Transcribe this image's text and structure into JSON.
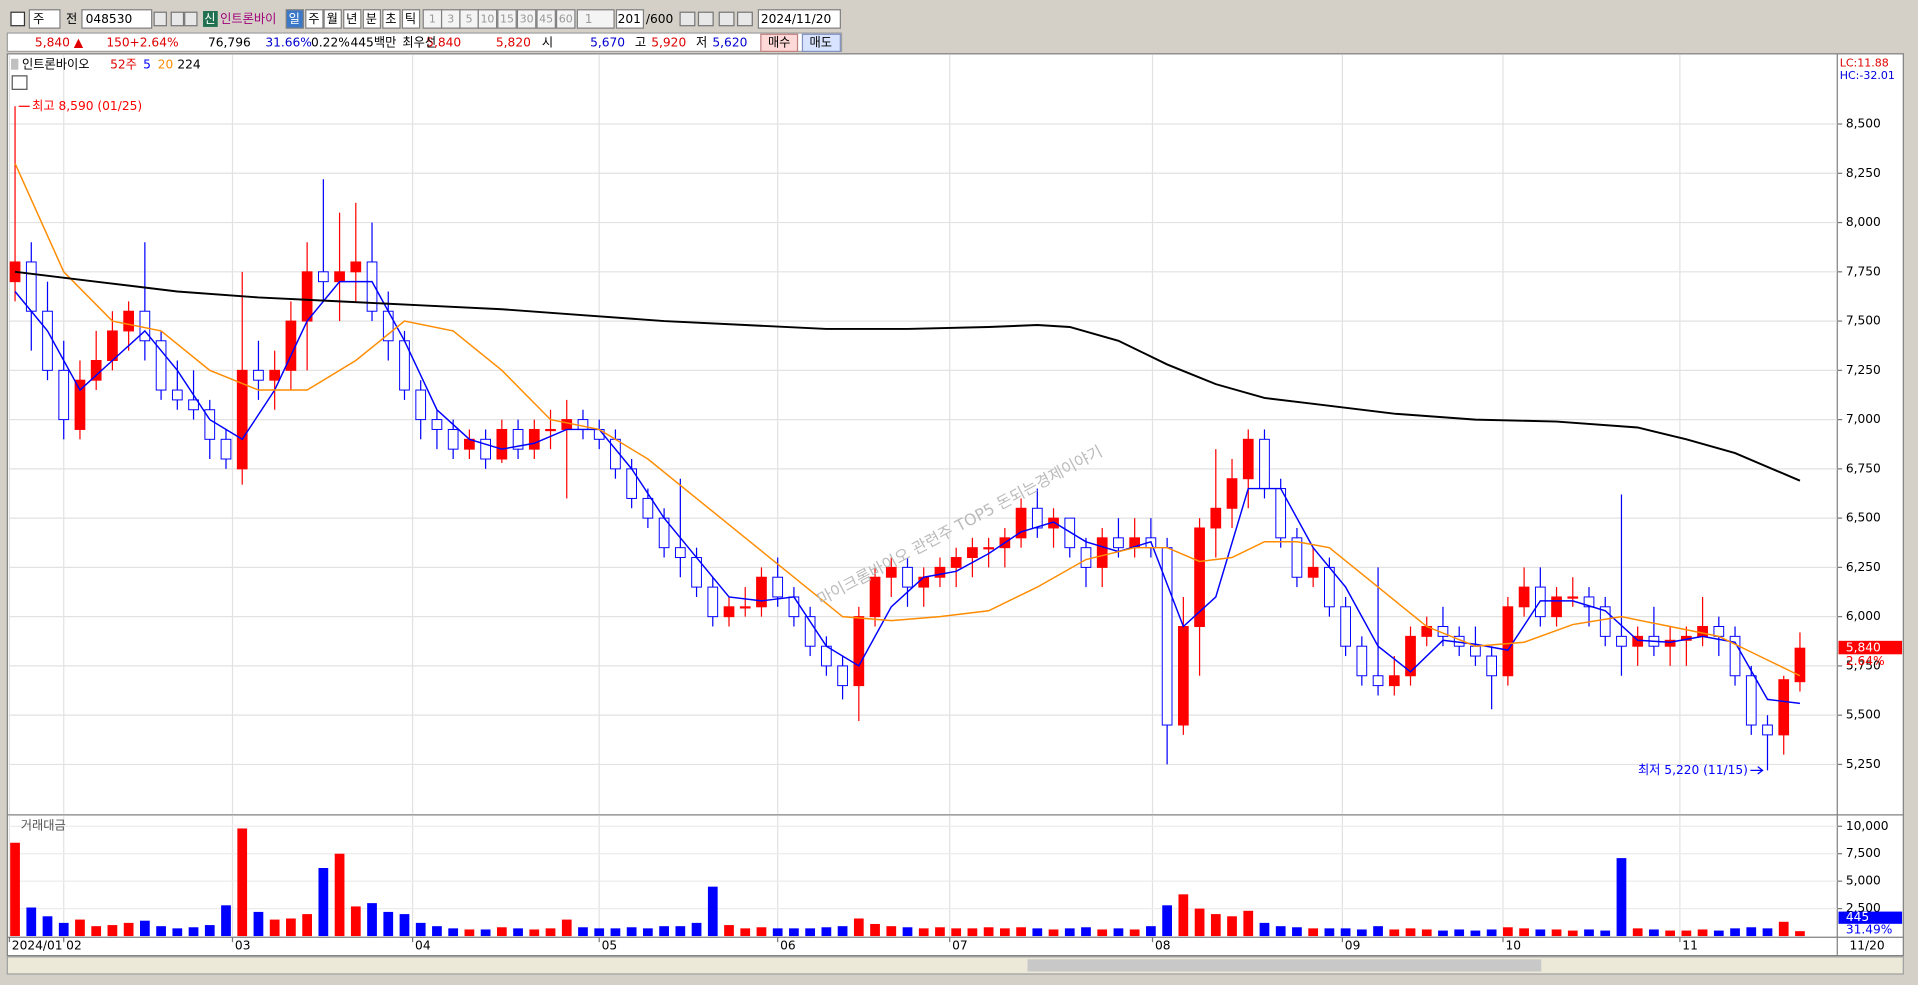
{
  "toolbar": {
    "market": "주",
    "prev": "전",
    "code": "048530",
    "badge": "신",
    "name": "인트론바이",
    "periods": [
      "일",
      "주",
      "월",
      "년",
      "분",
      "초",
      "틱"
    ],
    "intervals": [
      "1",
      "3",
      "5",
      "10",
      "15",
      "30",
      "45",
      "60"
    ],
    "count_select": "1",
    "count": "201",
    "count_max": "/600",
    "date": "2024/11/20"
  },
  "quote": {
    "price": "5,840 ▲",
    "change": "150",
    "change_pct": "+2.64%",
    "volume": "76,796",
    "turnover_rate": "31.66%",
    "ratio": "0.22%",
    "amount": "445백만",
    "best_label": "최우선",
    "best_ask": "5,840",
    "best_bid": "5,820",
    "open_label": "시",
    "open": "5,670",
    "high_label": "고",
    "high": "5,920",
    "low_label": "저",
    "low": "5,620",
    "buy": "매수",
    "sell": "매도"
  },
  "chart_data": [
    {
      "type": "candlestick",
      "legend_name": "인트론바이오",
      "legend_period": "52주",
      "indicator_lc": "LC:11.88",
      "indicator_hc": "HC:-32.01",
      "watermark": "마이크롬바이오 관련주 TOP5 돈되는경제이야기",
      "up_color": "#ff0000",
      "down_color": "#0000ff",
      "ohlc": [
        [
          7700,
          8590,
          7600,
          7800
        ],
        [
          7800,
          7900,
          7350,
          7550
        ],
        [
          7550,
          7700,
          7200,
          7250
        ],
        [
          7250,
          7400,
          6900,
          7000
        ],
        [
          6950,
          7300,
          6900,
          7200
        ],
        [
          7200,
          7450,
          7150,
          7300
        ],
        [
          7300,
          7550,
          7250,
          7450
        ],
        [
          7450,
          7600,
          7350,
          7550
        ],
        [
          7550,
          7900,
          7300,
          7400
        ],
        [
          7400,
          7450,
          7100,
          7150
        ],
        [
          7150,
          7300,
          7050,
          7100
        ],
        [
          7100,
          7250,
          7000,
          7050
        ],
        [
          7050,
          7100,
          6800,
          6900
        ],
        [
          6900,
          6950,
          6750,
          6800
        ],
        [
          6750,
          7750,
          6670,
          7250
        ],
        [
          7250,
          7400,
          7100,
          7200
        ],
        [
          7200,
          7350,
          7050,
          7250
        ],
        [
          7250,
          7600,
          7150,
          7500
        ],
        [
          7500,
          7900,
          7250,
          7750
        ],
        [
          7750,
          8220,
          7600,
          7700
        ],
        [
          7700,
          8050,
          7500,
          7750
        ],
        [
          7750,
          8100,
          7600,
          7800
        ],
        [
          7800,
          8000,
          7500,
          7550
        ],
        [
          7550,
          7650,
          7300,
          7400
        ],
        [
          7400,
          7450,
          7100,
          7150
        ],
        [
          7150,
          7200,
          6900,
          7000
        ],
        [
          7000,
          7050,
          6850,
          6950
        ],
        [
          6950,
          7000,
          6800,
          6850
        ],
        [
          6850,
          6950,
          6800,
          6900
        ],
        [
          6900,
          6950,
          6750,
          6800
        ],
        [
          6800,
          7000,
          6780,
          6950
        ],
        [
          6950,
          7000,
          6800,
          6850
        ],
        [
          6850,
          7000,
          6800,
          6950
        ],
        [
          6950,
          7050,
          6850,
          6950
        ],
        [
          6950,
          7100,
          6600,
          7000
        ],
        [
          7000,
          7050,
          6900,
          6950
        ],
        [
          6950,
          7000,
          6850,
          6900
        ],
        [
          6900,
          6950,
          6700,
          6750
        ],
        [
          6750,
          6800,
          6550,
          6600
        ],
        [
          6600,
          6650,
          6450,
          6500
        ],
        [
          6500,
          6550,
          6300,
          6350
        ],
        [
          6350,
          6700,
          6200,
          6300
        ],
        [
          6300,
          6350,
          6100,
          6150
        ],
        [
          6150,
          6200,
          5950,
          6000
        ],
        [
          6000,
          6100,
          5950,
          6050
        ],
        [
          6050,
          6150,
          6000,
          6050
        ],
        [
          6050,
          6250,
          6000,
          6200
        ],
        [
          6200,
          6300,
          6050,
          6100
        ],
        [
          6100,
          6150,
          5950,
          6000
        ],
        [
          6000,
          6050,
          5800,
          5850
        ],
        [
          5850,
          5900,
          5700,
          5750
        ],
        [
          5750,
          5800,
          5580,
          5650
        ],
        [
          5650,
          6050,
          5470,
          6000
        ],
        [
          6000,
          6250,
          5950,
          6200
        ],
        [
          6200,
          6300,
          6100,
          6250
        ],
        [
          6250,
          6300,
          6050,
          6150
        ],
        [
          6150,
          6250,
          6050,
          6200
        ],
        [
          6200,
          6300,
          6150,
          6250
        ],
        [
          6250,
          6350,
          6150,
          6300
        ],
        [
          6300,
          6400,
          6200,
          6350
        ],
        [
          6350,
          6400,
          6250,
          6350
        ],
        [
          6350,
          6450,
          6250,
          6400
        ],
        [
          6400,
          6600,
          6350,
          6550
        ],
        [
          6550,
          6650,
          6400,
          6450
        ],
        [
          6450,
          6550,
          6350,
          6500
        ],
        [
          6500,
          6500,
          6300,
          6350
        ],
        [
          6350,
          6400,
          6150,
          6250
        ],
        [
          6250,
          6450,
          6150,
          6400
        ],
        [
          6400,
          6500,
          6300,
          6350
        ],
        [
          6350,
          6500,
          6300,
          6400
        ],
        [
          6400,
          6500,
          6300,
          6350
        ],
        [
          6350,
          6400,
          5250,
          5450
        ],
        [
          5450,
          6100,
          5400,
          5950
        ],
        [
          5950,
          6500,
          5700,
          6450
        ],
        [
          6450,
          6850,
          6300,
          6550
        ],
        [
          6550,
          6800,
          6450,
          6700
        ],
        [
          6700,
          6950,
          6550,
          6900
        ],
        [
          6900,
          6950,
          6600,
          6650
        ],
        [
          6650,
          6700,
          6350,
          6400
        ],
        [
          6400,
          6450,
          6150,
          6200
        ],
        [
          6200,
          6350,
          6150,
          6250
        ],
        [
          6250,
          6300,
          6000,
          6050
        ],
        [
          6050,
          6100,
          5800,
          5850
        ],
        [
          5850,
          5900,
          5650,
          5700
        ],
        [
          5700,
          6250,
          5600,
          5650
        ],
        [
          5650,
          5800,
          5600,
          5700
        ],
        [
          5700,
          5950,
          5650,
          5900
        ],
        [
          5900,
          6000,
          5850,
          5950
        ],
        [
          5950,
          6050,
          5850,
          5900
        ],
        [
          5900,
          5950,
          5800,
          5850
        ],
        [
          5850,
          5950,
          5750,
          5800
        ],
        [
          5800,
          5850,
          5530,
          5700
        ],
        [
          5700,
          6100,
          5650,
          6050
        ],
        [
          6050,
          6250,
          6000,
          6150
        ],
        [
          6150,
          6250,
          5950,
          6000
        ],
        [
          6000,
          6150,
          5950,
          6100
        ],
        [
          6100,
          6200,
          6050,
          6100
        ],
        [
          6100,
          6150,
          5950,
          6050
        ],
        [
          6050,
          6100,
          5850,
          5900
        ],
        [
          5900,
          6620,
          5700,
          5850
        ],
        [
          5850,
          5950,
          5750,
          5900
        ],
        [
          5900,
          6050,
          5800,
          5850
        ],
        [
          5850,
          5950,
          5750,
          5880
        ],
        [
          5880,
          5950,
          5750,
          5900
        ],
        [
          5900,
          6100,
          5850,
          5950
        ],
        [
          5950,
          6000,
          5800,
          5900
        ],
        [
          5900,
          5950,
          5650,
          5700
        ],
        [
          5700,
          5750,
          5400,
          5450
        ],
        [
          5450,
          5500,
          5220,
          5400
        ],
        [
          5400,
          5700,
          5300,
          5680
        ],
        [
          5670,
          5920,
          5620,
          5840
        ]
      ],
      "series": [
        {
          "name": "5",
          "color": "#0000ff",
          "x": [
            0,
            2,
            4,
            6,
            8,
            10,
            12,
            14,
            16,
            18,
            20,
            22,
            24,
            26,
            28,
            30,
            32,
            34,
            36,
            38,
            40,
            42,
            44,
            46,
            48,
            50,
            52,
            54,
            56,
            58,
            60,
            62,
            64,
            66,
            68,
            70,
            72,
            74,
            76,
            78,
            80,
            82,
            84,
            86,
            88,
            90,
            92,
            94,
            96,
            98,
            100,
            102,
            104,
            106,
            108,
            110
          ],
          "values": [
            7650,
            7450,
            7150,
            7300,
            7450,
            7250,
            7000,
            6900,
            7150,
            7500,
            7700,
            7700,
            7400,
            7050,
            6900,
            6850,
            6880,
            6950,
            6950,
            6750,
            6500,
            6300,
            6100,
            6080,
            6100,
            5850,
            5750,
            6050,
            6200,
            6230,
            6320,
            6430,
            6480,
            6380,
            6330,
            6380,
            5950,
            6100,
            6650,
            6650,
            6350,
            6150,
            5850,
            5720,
            5880,
            5860,
            5830,
            6080,
            6080,
            6030,
            5880,
            5870,
            5900,
            5870,
            5580,
            5560
          ]
        },
        {
          "name": "20",
          "color": "#ff8c00",
          "x": [
            0,
            3,
            6,
            9,
            12,
            15,
            18,
            21,
            24,
            27,
            30,
            33,
            36,
            39,
            42,
            45,
            48,
            51,
            54,
            57,
            60,
            63,
            66,
            69,
            71,
            73,
            75,
            77,
            79,
            81,
            84,
            87,
            90,
            93,
            96,
            99,
            102,
            105,
            108,
            110
          ],
          "values": [
            8300,
            7750,
            7500,
            7450,
            7250,
            7150,
            7150,
            7300,
            7500,
            7450,
            7250,
            7000,
            6950,
            6800,
            6600,
            6400,
            6200,
            6000,
            5980,
            6000,
            6030,
            6150,
            6290,
            6350,
            6350,
            6280,
            6300,
            6380,
            6380,
            6350,
            6150,
            5950,
            5850,
            5870,
            5960,
            6000,
            5950,
            5900,
            5780,
            5700
          ]
        },
        {
          "name": "224",
          "color": "#000000",
          "x": [
            0,
            5,
            10,
            15,
            20,
            25,
            30,
            35,
            40,
            45,
            50,
            55,
            60,
            63,
            65,
            68,
            71,
            74,
            77,
            80,
            85,
            90,
            95,
            100,
            103,
            106,
            110
          ],
          "values": [
            7750,
            7700,
            7650,
            7620,
            7600,
            7580,
            7560,
            7530,
            7500,
            7480,
            7460,
            7460,
            7470,
            7480,
            7470,
            7400,
            7280,
            7180,
            7110,
            7080,
            7030,
            7000,
            6990,
            6960,
            6900,
            6830,
            6690
          ]
        }
      ],
      "xlim": [
        -0.4,
        112.3
      ],
      "xticks": [
        {
          "value": -0.35,
          "label": "2024/01"
        },
        {
          "value": 3,
          "label": "02"
        },
        {
          "value": 13.4,
          "label": "03"
        },
        {
          "value": 24.5,
          "label": "04"
        },
        {
          "value": 36,
          "label": "05"
        },
        {
          "value": 47,
          "label": "06"
        },
        {
          "value": 57.6,
          "label": "07"
        },
        {
          "value": 70.1,
          "label": "08"
        },
        {
          "value": 81.8,
          "label": "09"
        },
        {
          "value": 91.7,
          "label": "10"
        },
        {
          "value": 102.6,
          "label": "11"
        }
      ],
      "date_end": "11/20",
      "ylim": [
        5000,
        8850
      ],
      "yticks": [
        {
          "value": 5250,
          "label": "5,250"
        },
        {
          "value": 5500,
          "label": "5,500"
        },
        {
          "value": 5750,
          "label": "5,750"
        },
        {
          "value": 6000,
          "label": "6,000"
        },
        {
          "value": 6250,
          "label": "6,250"
        },
        {
          "value": 6500,
          "label": "6,500"
        },
        {
          "value": 6750,
          "label": "6,750"
        },
        {
          "value": 7000,
          "label": "7,000"
        },
        {
          "value": 7250,
          "label": "7,250"
        },
        {
          "value": 7500,
          "label": "7,500"
        },
        {
          "value": 7750,
          "label": "7,750"
        },
        {
          "value": 8000,
          "label": "8,000"
        },
        {
          "value": 8250,
          "label": "8,250"
        },
        {
          "value": 8500,
          "label": "8,500"
        }
      ],
      "grid": true,
      "high_annotation": "최고 8,590 (01/25)",
      "low_annotation": "최저 5,220 (11/15)",
      "last_label": "5,840",
      "last_pct": "2.64%"
    },
    {
      "type": "bar",
      "title": "거래대금",
      "values": [
        8500,
        2600,
        1800,
        1200,
        1500,
        900,
        1000,
        1200,
        1400,
        900,
        700,
        800,
        1000,
        2800,
        9800,
        2200,
        1500,
        1600,
        2000,
        6200,
        7500,
        2700,
        3000,
        2200,
        2000,
        1200,
        900,
        700,
        600,
        600,
        800,
        700,
        600,
        700,
        1500,
        800,
        700,
        700,
        800,
        700,
        900,
        900,
        1200,
        4500,
        1000,
        700,
        800,
        700,
        700,
        700,
        800,
        900,
        1600,
        1100,
        900,
        800,
        700,
        800,
        700,
        700,
        800,
        700,
        800,
        700,
        600,
        700,
        800,
        600,
        700,
        600,
        900,
        2800,
        3800,
        2500,
        2000,
        1800,
        2300,
        1200,
        900,
        800,
        700,
        700,
        700,
        600,
        900,
        600,
        700,
        600,
        500,
        600,
        500,
        600,
        800,
        700,
        600,
        600,
        500,
        600,
        500,
        7100,
        700,
        600,
        500,
        500,
        600,
        500,
        700,
        800,
        700,
        1300,
        445
      ],
      "ylim": [
        0,
        10700
      ],
      "yticks": [
        {
          "value": 2500,
          "label": "2,500"
        },
        {
          "value": 5000,
          "label": "5,000"
        },
        {
          "value": 7500,
          "label": "7,500"
        },
        {
          "value": 10000,
          "label": "10,000"
        }
      ],
      "last_label": "445",
      "last_pct": "31.49%"
    }
  ]
}
